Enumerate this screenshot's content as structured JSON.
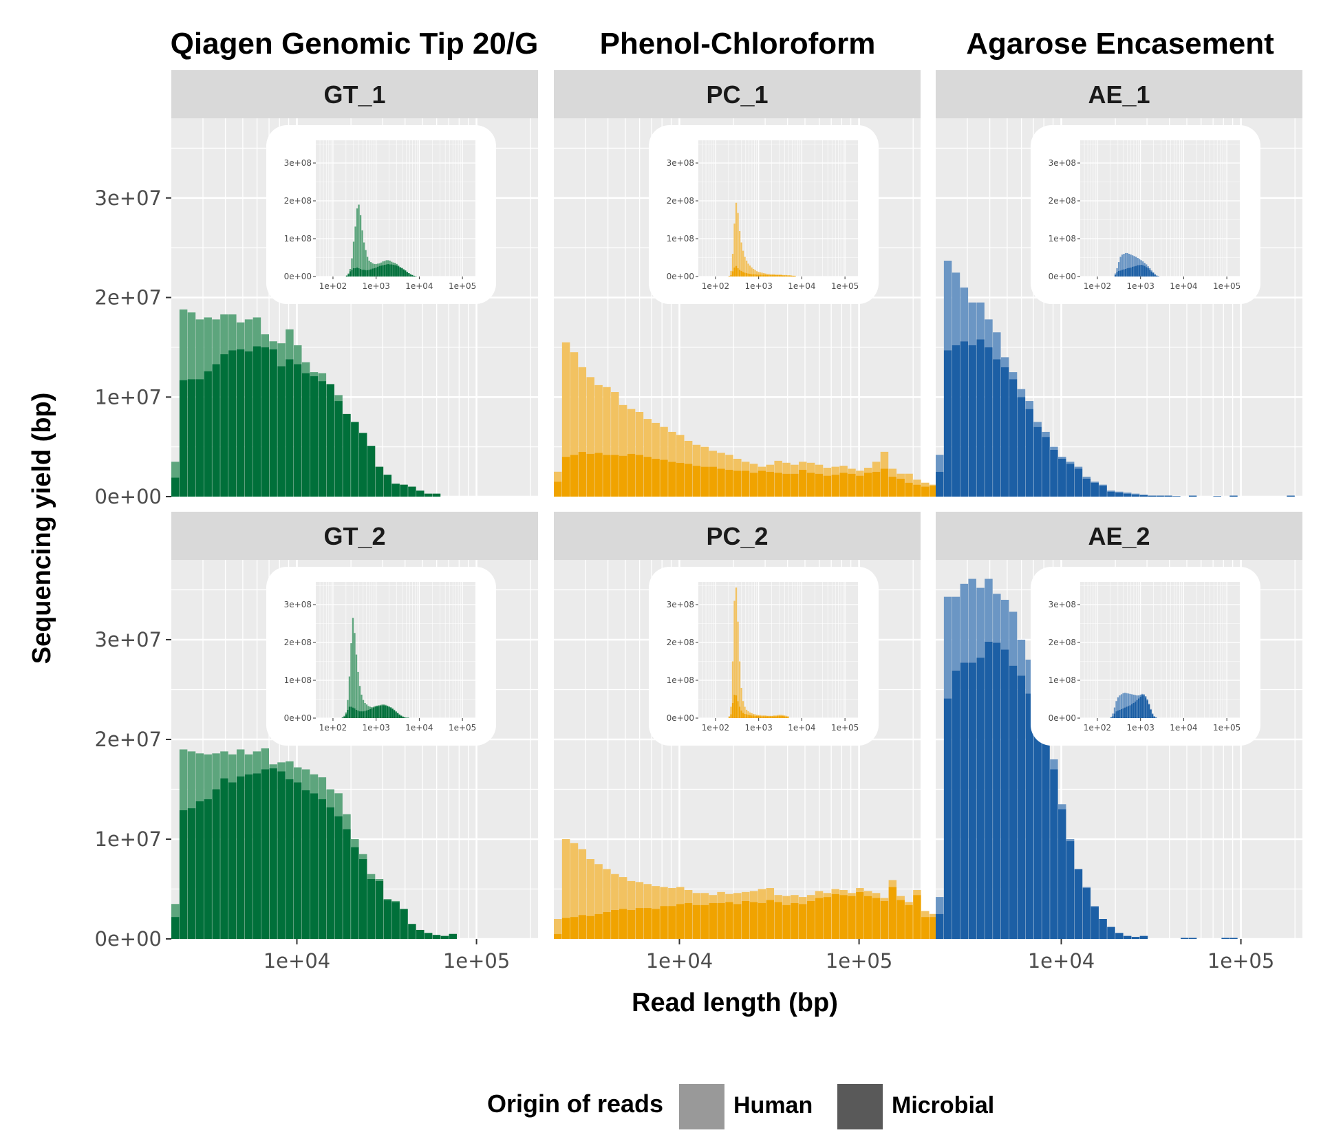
{
  "chart_data": {
    "type": "bar",
    "column_titles": [
      "Qiagen Genomic Tip 20/G",
      "Phenol-Chloroform",
      "Agarose Encasement"
    ],
    "xlabel": "Read length (bp)",
    "ylabel": "Sequencing yield (bp)",
    "x_scale": "log10",
    "main_x_range": [
      2000,
      220000
    ],
    "main_ylim": [
      0,
      38000000
    ],
    "main_y_ticks": [
      0,
      10000000,
      20000000,
      30000000
    ],
    "main_y_tick_labels": [
      "0e+00",
      "1e+07",
      "2e+07",
      "3e+07"
    ],
    "main_x_ticks": [
      10000,
      100000
    ],
    "main_x_tick_labels": [
      "1e+04",
      "1e+05"
    ],
    "inset_x_range": [
      40,
      200000
    ],
    "inset_ylim": [
      0,
      360000000
    ],
    "inset_y_ticks": [
      0,
      100000000,
      200000000,
      300000000
    ],
    "inset_y_tick_labels": [
      "0e+00",
      "1e+08",
      "2e+08",
      "3e+08"
    ],
    "inset_x_ticks": [
      100,
      1000,
      10000,
      100000
    ],
    "inset_x_tick_labels": [
      "1e+02",
      "1e+03",
      "1e+04",
      "1e+05"
    ],
    "legend": {
      "title": "Origin of reads",
      "position": "bottom",
      "entries": [
        {
          "label": "Human",
          "color": "#999999"
        },
        {
          "label": "Microbial",
          "color": "#595959"
        }
      ]
    },
    "palettes": {
      "GT": {
        "human": "#5da57d",
        "microbial": "#00703a"
      },
      "PC": {
        "human": "#f2c261",
        "microbial": "#f0a300"
      },
      "AE": {
        "human": "#6b96c4",
        "microbial": "#1c5fa5"
      }
    },
    "panels": [
      {
        "name": "GT_1",
        "group": "GT",
        "main": {
          "bin_start": 2000,
          "bins_per_decade": 22,
          "total": [
            3.5,
            18.8,
            18.5,
            17.8,
            18.0,
            17.8,
            18.3,
            18.3,
            17.5,
            17.8,
            18.0,
            16.3,
            15.6,
            15.4,
            16.8,
            15.2,
            13.5,
            12.5,
            12.4,
            10.6,
            10.2,
            7.5,
            6.6,
            5.2,
            5.1,
            3.0,
            2.2,
            1.3,
            1.2,
            1.0,
            0.6,
            0.3,
            0.3
          ],
          "microbial": [
            1.9,
            11.7,
            11.8,
            11.8,
            12.6,
            13.3,
            14.3,
            14.7,
            14.8,
            14.6,
            15.1,
            15.0,
            14.8,
            13.1,
            13.8,
            13.3,
            12.4,
            12.1,
            11.6,
            11.3,
            9.6,
            8.3,
            7.5,
            6.4,
            5.1,
            3.0,
            2.2,
            1.3,
            1.2,
            1.0,
            0.6,
            0.3,
            0.3
          ]
        },
        "inset": {
          "bin_start": 200,
          "bins_per_decade": 25,
          "total": [
            3,
            8,
            20,
            48,
            92,
            132,
            180,
            190,
            162,
            122,
            90,
            70,
            52,
            42,
            38,
            35,
            33,
            33,
            34,
            35,
            37,
            40,
            41,
            43,
            43,
            42,
            39,
            37,
            36,
            33,
            29,
            25,
            23,
            19,
            16,
            12,
            9,
            6,
            4,
            2,
            1
          ],
          "microbial": [
            2,
            6,
            14,
            18,
            22,
            22,
            24,
            22,
            20,
            18,
            18,
            17,
            17,
            18,
            19,
            21,
            22,
            24,
            26,
            28,
            29,
            30,
            31,
            32,
            33,
            32,
            32,
            31,
            30,
            29,
            27,
            24,
            22,
            19,
            16,
            12,
            9,
            6,
            4,
            2,
            1
          ]
        }
      },
      {
        "name": "PC_1",
        "group": "PC",
        "main": {
          "bin_start": 2000,
          "bins_per_decade": 22,
          "total": [
            2.5,
            15.5,
            14.5,
            13.0,
            12.0,
            11.2,
            11.0,
            10.5,
            9.2,
            8.8,
            8.5,
            7.8,
            7.4,
            7.0,
            6.5,
            6.2,
            5.6,
            5.2,
            5.0,
            4.6,
            4.4,
            4.2,
            3.8,
            3.5,
            3.3,
            3.0,
            3.2,
            3.6,
            3.4,
            3.2,
            3.5,
            3.4,
            3.2,
            2.9,
            3.0,
            3.1,
            2.8,
            2.6,
            2.9,
            3.5,
            4.5,
            2.8,
            2.3,
            2.3,
            1.7,
            1.4,
            1.2,
            0.8,
            0.5,
            0.5,
            0.5,
            0.3,
            0.4
          ],
          "microbial": [
            1.5,
            4.0,
            4.2,
            4.5,
            4.3,
            4.4,
            4.2,
            4.2,
            4.1,
            4.3,
            4.2,
            4.0,
            3.8,
            3.7,
            3.5,
            3.4,
            3.3,
            3.1,
            3.0,
            3.0,
            2.8,
            2.7,
            2.6,
            2.6,
            2.4,
            2.6,
            2.5,
            2.4,
            2.3,
            2.3,
            2.7,
            2.4,
            2.3,
            2.1,
            2.2,
            2.4,
            2.3,
            2.1,
            2.4,
            2.5,
            2.8,
            2.0,
            1.8,
            1.4,
            1.2,
            1.0,
            1.1,
            0.7,
            0.5,
            0.4,
            0.5,
            0.3,
            0.4
          ]
        },
        "inset": {
          "bin_start": 200,
          "bins_per_decade": 25,
          "total": [
            2,
            15,
            60,
            140,
            195,
            168,
            120,
            90,
            68,
            52,
            42,
            34,
            29,
            24,
            20,
            17,
            14,
            12,
            11,
            10,
            9,
            8,
            7,
            7,
            6,
            6,
            6,
            5,
            5,
            5,
            5,
            4,
            4,
            4,
            3,
            3,
            3,
            2,
            2
          ],
          "microbial": [
            1,
            4,
            14,
            24,
            28,
            22,
            18,
            15,
            12,
            10,
            9,
            8,
            7,
            6,
            6,
            6,
            5,
            5,
            5,
            5,
            5,
            5,
            4,
            4,
            4,
            4,
            4,
            4,
            4,
            4,
            4,
            3,
            3,
            3,
            3,
            3,
            2,
            2,
            2
          ]
        }
      },
      {
        "name": "AE_1",
        "group": "AE",
        "main": {
          "bin_start": 2000,
          "bins_per_decade": 22,
          "total": [
            4.2,
            23.7,
            22.5,
            21.0,
            19.5,
            19.5,
            17.8,
            16.5,
            14.0,
            12.5,
            10.8,
            9.6,
            7.5,
            6.5,
            5.0,
            4.0,
            3.5,
            3.0,
            2.0,
            1.5,
            1.2,
            0.6,
            0.5,
            0.4,
            0.3,
            0.2,
            0.1,
            0.1,
            0.1,
            0.05,
            0.0,
            0.1,
            0.0,
            0.0,
            0.05,
            0.0,
            0.1,
            0.0,
            0.0,
            0.0,
            0.0,
            0.0,
            0.0,
            0.1
          ],
          "microbial": [
            2.5,
            14.7,
            15.2,
            15.6,
            15.2,
            15.8,
            15.0,
            13.8,
            13.0,
            11.8,
            10.0,
            8.8,
            7.0,
            6.0,
            4.7,
            3.8,
            3.3,
            2.8,
            1.8,
            1.4,
            1.1,
            0.5,
            0.4,
            0.3,
            0.2,
            0.15,
            0.1,
            0.1,
            0.1,
            0.05,
            0.0,
            0.1,
            0.0,
            0.0,
            0.05,
            0.0,
            0.1,
            0.0,
            0.0,
            0.0,
            0.0,
            0.0,
            0.0,
            0.1
          ]
        },
        "inset": {
          "bin_start": 250,
          "bins_per_decade": 25,
          "total": [
            8,
            22,
            38,
            52,
            58,
            60,
            62,
            62,
            60,
            58,
            56,
            54,
            52,
            49,
            46,
            43,
            40,
            36,
            32,
            27,
            22,
            16,
            11,
            6,
            3,
            1
          ],
          "microbial": [
            4,
            12,
            15,
            16,
            18,
            19,
            20,
            22,
            23,
            24,
            26,
            27,
            28,
            30,
            30,
            31,
            30,
            28,
            25,
            22,
            18,
            13,
            9,
            5,
            2,
            1
          ]
        }
      },
      {
        "name": "GT_2",
        "group": "GT",
        "main": {
          "bin_start": 2000,
          "bins_per_decade": 22,
          "total": [
            3.5,
            19.0,
            18.8,
            18.6,
            18.5,
            18.6,
            18.8,
            18.5,
            19.0,
            18.5,
            18.8,
            19.1,
            17.5,
            17.7,
            17.8,
            17.2,
            17.0,
            16.5,
            16.2,
            15.0,
            14.6,
            12.5,
            10.0,
            8.5,
            6.5,
            6.0,
            4.0,
            3.8,
            3.0,
            1.5,
            0.9,
            0.6,
            0.4,
            0.3,
            0.5
          ],
          "microbial": [
            2.2,
            12.9,
            13.1,
            13.8,
            14.0,
            15.0,
            16.1,
            15.7,
            16.3,
            16.5,
            16.6,
            17.0,
            17.1,
            16.8,
            16.0,
            15.7,
            14.9,
            14.6,
            14.0,
            13.2,
            12.3,
            11.0,
            9.2,
            8.0,
            6.0,
            5.8,
            3.9,
            3.7,
            3.0,
            1.5,
            0.9,
            0.6,
            0.4,
            0.3,
            0.5
          ]
        },
        "inset": {
          "bin_start": 160,
          "bins_per_decade": 25,
          "total": [
            2,
            6,
            15,
            48,
            110,
            198,
            265,
            225,
            168,
            122,
            85,
            62,
            48,
            40,
            36,
            32,
            30,
            29,
            30,
            32,
            33,
            34,
            35,
            36,
            36,
            35,
            33,
            31,
            29,
            26,
            22,
            18,
            14,
            10,
            7,
            4,
            2,
            1,
            1
          ],
          "microbial": [
            1,
            4,
            10,
            22,
            30,
            30,
            28,
            26,
            22,
            20,
            18,
            18,
            18,
            19,
            20,
            22,
            24,
            26,
            28,
            30,
            31,
            32,
            33,
            34,
            34,
            33,
            31,
            29,
            27,
            24,
            20,
            16,
            13,
            9,
            6,
            4,
            2,
            1,
            1
          ]
        }
      },
      {
        "name": "PC_2",
        "group": "PC",
        "main": {
          "bin_start": 2000,
          "bins_per_decade": 22,
          "total": [
            2.0,
            10.0,
            9.6,
            9.0,
            8.0,
            7.5,
            7.0,
            6.5,
            6.2,
            5.8,
            5.7,
            5.5,
            5.3,
            5.2,
            5.1,
            5.2,
            4.9,
            4.6,
            4.6,
            4.4,
            4.7,
            4.5,
            4.6,
            4.7,
            4.8,
            5.0,
            5.1,
            4.4,
            4.3,
            4.4,
            4.2,
            4.4,
            4.8,
            4.6,
            5.0,
            4.9,
            4.6,
            5.1,
            4.8,
            4.6,
            4.1,
            5.9,
            4.3,
            3.7,
            4.9,
            2.8,
            2.5,
            2.0,
            1.4,
            1.2,
            0.4,
            0.3,
            0.5,
            0.6
          ],
          "microbial": [
            0.5,
            2.1,
            2.2,
            2.4,
            2.3,
            2.5,
            2.7,
            2.9,
            3.0,
            2.9,
            3.1,
            3.1,
            3.0,
            3.3,
            3.3,
            3.5,
            3.6,
            3.4,
            3.4,
            3.6,
            3.6,
            3.7,
            3.5,
            3.8,
            3.7,
            3.6,
            3.9,
            3.7,
            3.4,
            3.6,
            3.5,
            3.8,
            4.1,
            4.2,
            4.5,
            4.4,
            4.3,
            4.7,
            4.3,
            4.1,
            3.8,
            5.2,
            3.9,
            3.4,
            4.4,
            2.2,
            2.2,
            1.8,
            1.2,
            1.0,
            0.3,
            0.2,
            0.4,
            0.4
          ]
        },
        "inset": {
          "bin_start": 200,
          "bins_per_decade": 25,
          "total": [
            5,
            30,
            150,
            310,
            345,
            255,
            150,
            80,
            45,
            30,
            22,
            18,
            15,
            13,
            11,
            10,
            9,
            8,
            8,
            7,
            7,
            7,
            6,
            6,
            6,
            6,
            7,
            7,
            8,
            9,
            9,
            8,
            7,
            6,
            5
          ],
          "microbial": [
            2,
            10,
            40,
            62,
            60,
            45,
            30,
            20,
            14,
            11,
            10,
            9,
            8,
            7,
            7,
            6,
            6,
            6,
            5,
            5,
            5,
            5,
            5,
            5,
            5,
            5,
            5,
            5,
            6,
            6,
            6,
            6,
            5,
            4,
            3
          ]
        }
      },
      {
        "name": "AE_2",
        "group": "AE",
        "main": {
          "bin_start": 2000,
          "bins_per_decade": 22,
          "total": [
            4.2,
            34.3,
            34.3,
            35.6,
            36.1,
            35.2,
            36.1,
            34.6,
            34.0,
            32.8,
            30.0,
            28.0,
            26.0,
            21.5,
            18.0,
            13.5,
            10.0,
            7.0,
            5.2,
            3.3,
            2.0,
            1.2,
            0.6,
            0.3,
            0.2,
            0.3,
            0.0,
            0.0,
            0.0,
            0.0,
            0.1,
            0.1,
            0.0,
            0.0,
            0.0,
            0.1,
            0.1
          ],
          "microbial": [
            2.5,
            24.1,
            26.9,
            27.7,
            27.7,
            28.2,
            29.8,
            29.7,
            29.0,
            27.4,
            26.4,
            24.6,
            23.5,
            20.0,
            17.0,
            13.0,
            9.8,
            7.0,
            5.1,
            3.2,
            2.0,
            1.2,
            0.6,
            0.3,
            0.2,
            0.3,
            0.0,
            0.0,
            0.0,
            0.0,
            0.1,
            0.1,
            0.0,
            0.0,
            0.0,
            0.1,
            0.1
          ]
        },
        "inset": {
          "bin_start": 200,
          "bins_per_decade": 25,
          "total": [
            3,
            12,
            28,
            45,
            55,
            60,
            63,
            66,
            67,
            66,
            65,
            64,
            63,
            62,
            61,
            60,
            60,
            62,
            64,
            63,
            58,
            50,
            38,
            24,
            12,
            5,
            2
          ],
          "microbial": [
            1,
            5,
            12,
            18,
            20,
            22,
            24,
            26,
            28,
            30,
            32,
            34,
            37,
            40,
            44,
            48,
            52,
            57,
            61,
            60,
            55,
            47,
            36,
            22,
            10,
            4,
            1
          ]
        }
      }
    ]
  }
}
